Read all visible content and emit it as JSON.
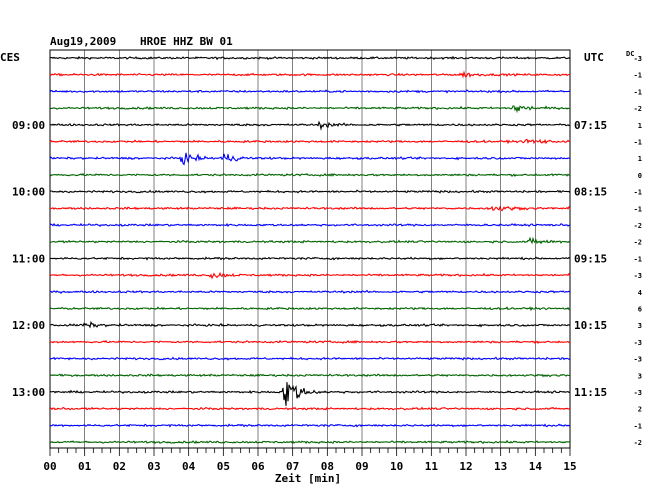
{
  "header": {
    "date": "Aug19,2009",
    "station": "HROE HHZ BW 01",
    "left_zone": "CES",
    "right_zone": "UTC",
    "dc_label": "DC"
  },
  "chart_data": {
    "type": "line",
    "title": "Aug19,2009 HROE HHZ BW 01",
    "xlabel": "Zeit [min]",
    "ylabel": "",
    "xlim": [
      0,
      15
    ],
    "x_ticks": [
      "00",
      "01",
      "02",
      "03",
      "04",
      "05",
      "06",
      "07",
      "08",
      "09",
      "10",
      "11",
      "12",
      "13",
      "14",
      "15"
    ],
    "trace_colors": [
      "#000000",
      "#ff0000",
      "#0000ff",
      "#006400"
    ],
    "traces_per_hour": 4,
    "minutes_per_trace": 15,
    "left_hour_labels": [
      {
        "trace": 4,
        "label": "09:00"
      },
      {
        "trace": 8,
        "label": "10:00"
      },
      {
        "trace": 12,
        "label": "11:00"
      },
      {
        "trace": 16,
        "label": "12:00"
      },
      {
        "trace": 20,
        "label": "13:00"
      }
    ],
    "right_time_labels": [
      {
        "trace": 4,
        "label": "07:15"
      },
      {
        "trace": 8,
        "label": "08:15"
      },
      {
        "trace": 12,
        "label": "09:15"
      },
      {
        "trace": 16,
        "label": "10:15"
      },
      {
        "trace": 20,
        "label": "11:15"
      }
    ],
    "dc_offsets": [
      "-3",
      "-1",
      "-1",
      "-2",
      "1",
      "-1",
      "1",
      "0",
      "-1",
      "-1",
      "-2",
      "-2",
      "-1",
      "-3",
      "4",
      "6",
      "3",
      "-3",
      "-3",
      "3",
      "-3",
      "2",
      "-1",
      "-2"
    ],
    "events": [
      {
        "trace": 1,
        "minute": 11.9,
        "amplitude": 0.6
      },
      {
        "trace": 3,
        "minute": 13.4,
        "amplitude": 1.3
      },
      {
        "trace": 4,
        "minute": 7.8,
        "amplitude": 0.6
      },
      {
        "trace": 5,
        "minute": 13.8,
        "amplitude": 0.9
      },
      {
        "trace": 6,
        "minute": 3.8,
        "amplitude": 1.4
      },
      {
        "trace": 6,
        "minute": 5.0,
        "amplitude": 1.2
      },
      {
        "trace": 9,
        "minute": 12.8,
        "amplitude": 0.9
      },
      {
        "trace": 11,
        "minute": 13.9,
        "amplitude": 0.8
      },
      {
        "trace": 13,
        "minute": 4.7,
        "amplitude": 0.8
      },
      {
        "trace": 16,
        "minute": 1.0,
        "amplitude": 0.6
      },
      {
        "trace": 20,
        "minute": 6.8,
        "amplitude": 4.5
      }
    ],
    "noise_amplitude": 0.25
  }
}
